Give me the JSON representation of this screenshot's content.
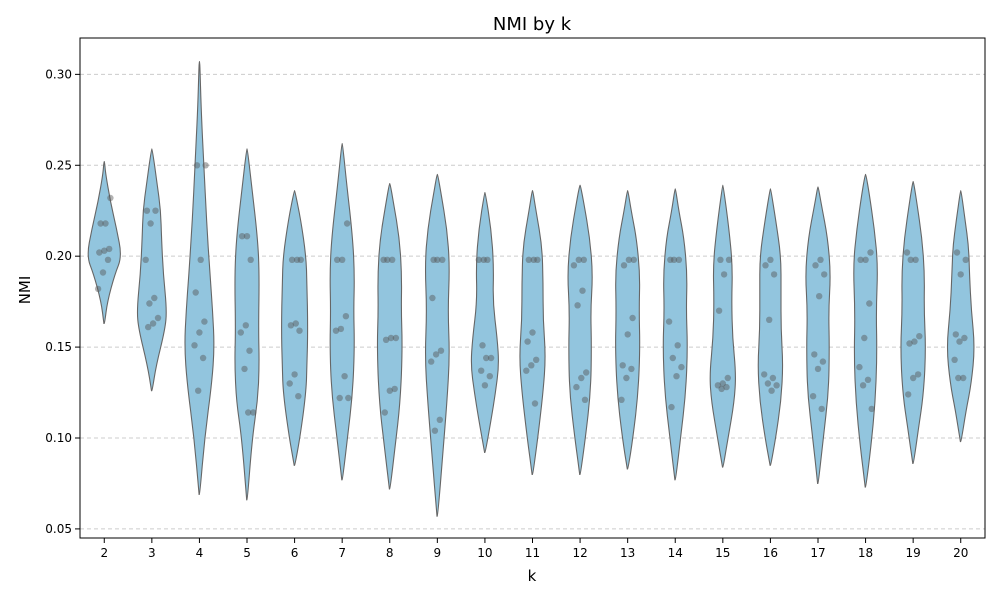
{
  "chart_data": {
    "type": "violin",
    "title": "NMI by k",
    "xlabel": "k",
    "ylabel": "NMI",
    "ylim": [
      0.045,
      0.32
    ],
    "yticks": [
      0.05,
      0.1,
      0.15,
      0.2,
      0.25,
      0.3
    ],
    "ytick_labels": [
      "0.05",
      "0.10",
      "0.15",
      "0.20",
      "0.25",
      "0.30"
    ],
    "grid": "y-dashed",
    "colors": {
      "violin_fill": "#92c5de",
      "violin_edge": "#666666",
      "points": "#555555",
      "grid": "#cccccc"
    },
    "categories": [
      "2",
      "3",
      "4",
      "5",
      "6",
      "7",
      "8",
      "9",
      "10",
      "11",
      "12",
      "13",
      "14",
      "15",
      "16",
      "17",
      "18",
      "19",
      "20"
    ],
    "violins": [
      {
        "k": "2",
        "ymin": 0.163,
        "ymax": 0.252,
        "profile": [
          [
            0.163,
            0.02
          ],
          [
            0.175,
            0.18
          ],
          [
            0.19,
            0.6
          ],
          [
            0.2,
            1.0
          ],
          [
            0.215,
            0.7
          ],
          [
            0.23,
            0.35
          ],
          [
            0.245,
            0.08
          ],
          [
            0.252,
            0.02
          ]
        ],
        "points": [
          0.182,
          0.191,
          0.198,
          0.202,
          0.203,
          0.204,
          0.218,
          0.218,
          0.232
        ]
      },
      {
        "k": "3",
        "ymin": 0.126,
        "ymax": 0.259,
        "profile": [
          [
            0.126,
            0.02
          ],
          [
            0.14,
            0.25
          ],
          [
            0.16,
            0.75
          ],
          [
            0.17,
            0.85
          ],
          [
            0.19,
            0.65
          ],
          [
            0.21,
            0.55
          ],
          [
            0.225,
            0.5
          ],
          [
            0.24,
            0.3
          ],
          [
            0.259,
            0.02
          ]
        ],
        "points": [
          0.161,
          0.163,
          0.166,
          0.174,
          0.177,
          0.198,
          0.218,
          0.225,
          0.225
        ]
      },
      {
        "k": "4",
        "ymin": 0.069,
        "ymax": 0.307,
        "profile": [
          [
            0.069,
            0.02
          ],
          [
            0.1,
            0.3
          ],
          [
            0.13,
            0.7
          ],
          [
            0.15,
            0.85
          ],
          [
            0.17,
            0.75
          ],
          [
            0.19,
            0.6
          ],
          [
            0.22,
            0.4
          ],
          [
            0.25,
            0.25
          ],
          [
            0.28,
            0.1
          ],
          [
            0.307,
            0.02
          ]
        ],
        "points": [
          0.126,
          0.144,
          0.151,
          0.158,
          0.164,
          0.18,
          0.198,
          0.25,
          0.25
        ]
      },
      {
        "k": "5",
        "ymin": 0.066,
        "ymax": 0.259,
        "profile": [
          [
            0.066,
            0.02
          ],
          [
            0.1,
            0.3
          ],
          [
            0.12,
            0.6
          ],
          [
            0.14,
            0.7
          ],
          [
            0.16,
            0.65
          ],
          [
            0.19,
            0.7
          ],
          [
            0.21,
            0.6
          ],
          [
            0.24,
            0.25
          ],
          [
            0.259,
            0.02
          ]
        ],
        "points": [
          0.114,
          0.114,
          0.138,
          0.148,
          0.158,
          0.162,
          0.198,
          0.211,
          0.211
        ]
      },
      {
        "k": "6",
        "ymin": 0.085,
        "ymax": 0.236,
        "profile": [
          [
            0.085,
            0.02
          ],
          [
            0.1,
            0.3
          ],
          [
            0.125,
            0.65
          ],
          [
            0.14,
            0.7
          ],
          [
            0.16,
            0.75
          ],
          [
            0.185,
            0.7
          ],
          [
            0.2,
            0.65
          ],
          [
            0.22,
            0.35
          ],
          [
            0.236,
            0.02
          ]
        ],
        "points": [
          0.123,
          0.13,
          0.135,
          0.159,
          0.162,
          0.163,
          0.198,
          0.198,
          0.198
        ]
      },
      {
        "k": "7",
        "ymin": 0.077,
        "ymax": 0.262,
        "profile": [
          [
            0.077,
            0.02
          ],
          [
            0.1,
            0.3
          ],
          [
            0.125,
            0.6
          ],
          [
            0.15,
            0.7
          ],
          [
            0.17,
            0.65
          ],
          [
            0.19,
            0.7
          ],
          [
            0.21,
            0.6
          ],
          [
            0.24,
            0.25
          ],
          [
            0.262,
            0.02
          ]
        ],
        "points": [
          0.122,
          0.122,
          0.134,
          0.159,
          0.16,
          0.167,
          0.198,
          0.198,
          0.218
        ]
      },
      {
        "k": "8",
        "ymin": 0.072,
        "ymax": 0.24,
        "profile": [
          [
            0.072,
            0.02
          ],
          [
            0.095,
            0.3
          ],
          [
            0.12,
            0.6
          ],
          [
            0.15,
            0.72
          ],
          [
            0.17,
            0.65
          ],
          [
            0.19,
            0.68
          ],
          [
            0.21,
            0.55
          ],
          [
            0.23,
            0.2
          ],
          [
            0.24,
            0.02
          ]
        ],
        "points": [
          0.114,
          0.126,
          0.127,
          0.154,
          0.155,
          0.155,
          0.198,
          0.198,
          0.198
        ]
      },
      {
        "k": "9",
        "ymin": 0.057,
        "ymax": 0.245,
        "profile": [
          [
            0.057,
            0.02
          ],
          [
            0.09,
            0.3
          ],
          [
            0.12,
            0.55
          ],
          [
            0.145,
            0.7
          ],
          [
            0.17,
            0.6
          ],
          [
            0.195,
            0.7
          ],
          [
            0.215,
            0.55
          ],
          [
            0.235,
            0.2
          ],
          [
            0.245,
            0.02
          ]
        ],
        "points": [
          0.104,
          0.11,
          0.142,
          0.146,
          0.148,
          0.177,
          0.198,
          0.198,
          0.198
        ]
      },
      {
        "k": "10",
        "ymin": 0.092,
        "ymax": 0.235,
        "profile": [
          [
            0.092,
            0.02
          ],
          [
            0.11,
            0.35
          ],
          [
            0.125,
            0.6
          ],
          [
            0.14,
            0.8
          ],
          [
            0.155,
            0.7
          ],
          [
            0.175,
            0.45
          ],
          [
            0.195,
            0.5
          ],
          [
            0.215,
            0.35
          ],
          [
            0.235,
            0.02
          ]
        ],
        "points": [
          0.129,
          0.134,
          0.137,
          0.144,
          0.144,
          0.151,
          0.198,
          0.198,
          0.198
        ]
      },
      {
        "k": "11",
        "ymin": 0.08,
        "ymax": 0.236,
        "profile": [
          [
            0.08,
            0.02
          ],
          [
            0.1,
            0.3
          ],
          [
            0.125,
            0.6
          ],
          [
            0.145,
            0.75
          ],
          [
            0.165,
            0.6
          ],
          [
            0.185,
            0.6
          ],
          [
            0.205,
            0.55
          ],
          [
            0.225,
            0.2
          ],
          [
            0.236,
            0.02
          ]
        ],
        "points": [
          0.119,
          0.137,
          0.14,
          0.143,
          0.153,
          0.158,
          0.198,
          0.198,
          0.198
        ]
      },
      {
        "k": "12",
        "ymin": 0.08,
        "ymax": 0.239,
        "profile": [
          [
            0.08,
            0.02
          ],
          [
            0.1,
            0.3
          ],
          [
            0.125,
            0.6
          ],
          [
            0.15,
            0.65
          ],
          [
            0.17,
            0.6
          ],
          [
            0.19,
            0.72
          ],
          [
            0.21,
            0.55
          ],
          [
            0.23,
            0.2
          ],
          [
            0.239,
            0.02
          ]
        ],
        "points": [
          0.121,
          0.128,
          0.133,
          0.136,
          0.173,
          0.181,
          0.195,
          0.198,
          0.198
        ]
      },
      {
        "k": "13",
        "ymin": 0.083,
        "ymax": 0.236,
        "profile": [
          [
            0.083,
            0.02
          ],
          [
            0.1,
            0.3
          ],
          [
            0.125,
            0.6
          ],
          [
            0.15,
            0.7
          ],
          [
            0.17,
            0.65
          ],
          [
            0.19,
            0.7
          ],
          [
            0.21,
            0.5
          ],
          [
            0.225,
            0.2
          ],
          [
            0.236,
            0.02
          ]
        ],
        "points": [
          0.121,
          0.133,
          0.138,
          0.14,
          0.157,
          0.166,
          0.195,
          0.198,
          0.198
        ]
      },
      {
        "k": "14",
        "ymin": 0.077,
        "ymax": 0.237,
        "profile": [
          [
            0.077,
            0.02
          ],
          [
            0.1,
            0.3
          ],
          [
            0.125,
            0.6
          ],
          [
            0.15,
            0.7
          ],
          [
            0.17,
            0.62
          ],
          [
            0.19,
            0.68
          ],
          [
            0.21,
            0.5
          ],
          [
            0.225,
            0.2
          ],
          [
            0.237,
            0.02
          ]
        ],
        "points": [
          0.117,
          0.134,
          0.139,
          0.144,
          0.151,
          0.164,
          0.198,
          0.198,
          0.198
        ]
      },
      {
        "k": "15",
        "ymin": 0.084,
        "ymax": 0.239,
        "profile": [
          [
            0.084,
            0.02
          ],
          [
            0.1,
            0.3
          ],
          [
            0.12,
            0.65
          ],
          [
            0.135,
            0.75
          ],
          [
            0.155,
            0.55
          ],
          [
            0.175,
            0.5
          ],
          [
            0.195,
            0.55
          ],
          [
            0.215,
            0.35
          ],
          [
            0.239,
            0.02
          ]
        ],
        "points": [
          0.127,
          0.128,
          0.129,
          0.13,
          0.133,
          0.17,
          0.19,
          0.198,
          0.198
        ]
      },
      {
        "k": "16",
        "ymin": 0.085,
        "ymax": 0.237,
        "profile": [
          [
            0.085,
            0.02
          ],
          [
            0.1,
            0.3
          ],
          [
            0.12,
            0.6
          ],
          [
            0.14,
            0.72
          ],
          [
            0.16,
            0.6
          ],
          [
            0.18,
            0.6
          ],
          [
            0.2,
            0.6
          ],
          [
            0.22,
            0.3
          ],
          [
            0.237,
            0.02
          ]
        ],
        "points": [
          0.126,
          0.129,
          0.13,
          0.133,
          0.135,
          0.165,
          0.19,
          0.195,
          0.198
        ]
      },
      {
        "k": "17",
        "ymin": 0.075,
        "ymax": 0.238,
        "profile": [
          [
            0.075,
            0.02
          ],
          [
            0.1,
            0.3
          ],
          [
            0.125,
            0.6
          ],
          [
            0.15,
            0.65
          ],
          [
            0.17,
            0.6
          ],
          [
            0.19,
            0.72
          ],
          [
            0.21,
            0.55
          ],
          [
            0.228,
            0.2
          ],
          [
            0.238,
            0.02
          ]
        ],
        "points": [
          0.116,
          0.123,
          0.138,
          0.142,
          0.146,
          0.178,
          0.19,
          0.195,
          0.198
        ]
      },
      {
        "k": "18",
        "ymin": 0.073,
        "ymax": 0.245,
        "profile": [
          [
            0.073,
            0.02
          ],
          [
            0.095,
            0.3
          ],
          [
            0.12,
            0.55
          ],
          [
            0.145,
            0.65
          ],
          [
            0.17,
            0.6
          ],
          [
            0.195,
            0.7
          ],
          [
            0.215,
            0.5
          ],
          [
            0.235,
            0.2
          ],
          [
            0.245,
            0.02
          ]
        ],
        "points": [
          0.116,
          0.129,
          0.132,
          0.139,
          0.155,
          0.174,
          0.198,
          0.198,
          0.202
        ]
      },
      {
        "k": "19",
        "ymin": 0.086,
        "ymax": 0.241,
        "profile": [
          [
            0.086,
            0.02
          ],
          [
            0.105,
            0.3
          ],
          [
            0.125,
            0.6
          ],
          [
            0.15,
            0.72
          ],
          [
            0.17,
            0.62
          ],
          [
            0.19,
            0.65
          ],
          [
            0.21,
            0.5
          ],
          [
            0.23,
            0.2
          ],
          [
            0.241,
            0.02
          ]
        ],
        "points": [
          0.124,
          0.133,
          0.135,
          0.152,
          0.153,
          0.156,
          0.198,
          0.198,
          0.202
        ]
      },
      {
        "k": "20",
        "ymin": 0.098,
        "ymax": 0.236,
        "profile": [
          [
            0.098,
            0.02
          ],
          [
            0.115,
            0.3
          ],
          [
            0.13,
            0.6
          ],
          [
            0.15,
            0.8
          ],
          [
            0.17,
            0.6
          ],
          [
            0.19,
            0.5
          ],
          [
            0.205,
            0.45
          ],
          [
            0.22,
            0.25
          ],
          [
            0.236,
            0.02
          ]
        ],
        "points": [
          0.133,
          0.133,
          0.143,
          0.153,
          0.155,
          0.157,
          0.19,
          0.198,
          0.202
        ]
      }
    ]
  }
}
